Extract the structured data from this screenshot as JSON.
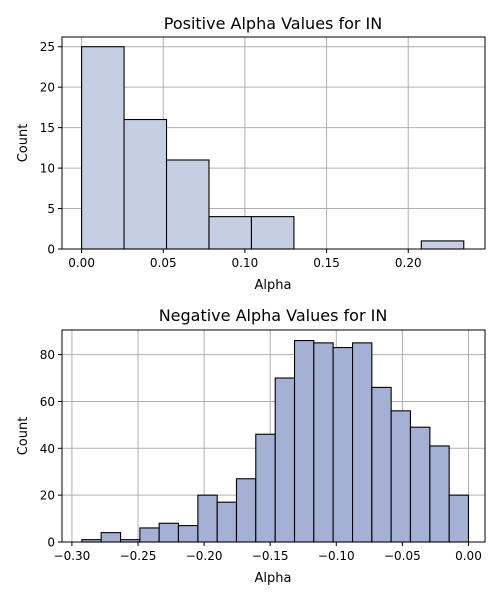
{
  "chart_data": [
    {
      "type": "bar",
      "title": "Positive Alpha Values for IN",
      "xlabel": "Alpha",
      "ylabel": "Count",
      "xlim": [
        -0.012,
        0.247
      ],
      "ylim": [
        0,
        26.2
      ],
      "xticks": [
        0.0,
        0.05,
        0.1,
        0.15,
        0.2
      ],
      "xtick_labels": [
        "0.00",
        "0.05",
        "0.10",
        "0.15",
        "0.20"
      ],
      "yticks": [
        0,
        5,
        10,
        15,
        20,
        25
      ],
      "ytick_labels": [
        "0",
        "5",
        "10",
        "15",
        "20",
        "25"
      ],
      "grid": true,
      "bar_color": "#c5cee3",
      "bins": [
        {
          "x0": 0.0,
          "x1": 0.026,
          "count": 25
        },
        {
          "x0": 0.026,
          "x1": 0.052,
          "count": 16
        },
        {
          "x0": 0.052,
          "x1": 0.078,
          "count": 11
        },
        {
          "x0": 0.078,
          "x1": 0.104,
          "count": 4
        },
        {
          "x0": 0.104,
          "x1": 0.13,
          "count": 4
        },
        {
          "x0": 0.13,
          "x1": 0.156,
          "count": 0
        },
        {
          "x0": 0.156,
          "x1": 0.182,
          "count": 0
        },
        {
          "x0": 0.182,
          "x1": 0.208,
          "count": 0
        },
        {
          "x0": 0.208,
          "x1": 0.234,
          "count": 1
        }
      ]
    },
    {
      "type": "bar",
      "title": "Negative Alpha Values for IN",
      "xlabel": "Alpha",
      "ylabel": "Count",
      "xlim": [
        -0.3075,
        0.0125
      ],
      "ylim": [
        0,
        90.5
      ],
      "xticks": [
        -0.3,
        -0.25,
        -0.2,
        -0.15,
        -0.1,
        -0.05,
        0.0
      ],
      "xtick_labels": [
        "−0.30",
        "−0.25",
        "−0.20",
        "−0.15",
        "−0.10",
        "−0.05",
        "0.00"
      ],
      "yticks": [
        0,
        20,
        40,
        60,
        80
      ],
      "ytick_labels": [
        "0",
        "20",
        "40",
        "60",
        "80"
      ],
      "grid": true,
      "bar_color": "#a4b1d4",
      "bins": [
        {
          "x0": -0.2925,
          "x1": -0.2779,
          "count": 1
        },
        {
          "x0": -0.2779,
          "x1": -0.2632,
          "count": 4
        },
        {
          "x0": -0.2632,
          "x1": -0.2486,
          "count": 1
        },
        {
          "x0": -0.2486,
          "x1": -0.234,
          "count": 6
        },
        {
          "x0": -0.234,
          "x1": -0.2194,
          "count": 8
        },
        {
          "x0": -0.2194,
          "x1": -0.2047,
          "count": 7
        },
        {
          "x0": -0.2047,
          "x1": -0.1901,
          "count": 20
        },
        {
          "x0": -0.1901,
          "x1": -0.1755,
          "count": 17
        },
        {
          "x0": -0.1755,
          "x1": -0.1609,
          "count": 27
        },
        {
          "x0": -0.1609,
          "x1": -0.1462,
          "count": 46
        },
        {
          "x0": -0.1462,
          "x1": -0.1316,
          "count": 70
        },
        {
          "x0": -0.1316,
          "x1": -0.117,
          "count": 86
        },
        {
          "x0": -0.117,
          "x1": -0.1024,
          "count": 85
        },
        {
          "x0": -0.1024,
          "x1": -0.0877,
          "count": 83
        },
        {
          "x0": -0.0877,
          "x1": -0.0731,
          "count": 85
        },
        {
          "x0": -0.0731,
          "x1": -0.0585,
          "count": 66
        },
        {
          "x0": -0.0585,
          "x1": -0.0439,
          "count": 56
        },
        {
          "x0": -0.0439,
          "x1": -0.0292,
          "count": 49
        },
        {
          "x0": -0.0292,
          "x1": -0.0146,
          "count": 41
        },
        {
          "x0": -0.0146,
          "x1": 0.0,
          "count": 20
        }
      ]
    }
  ]
}
